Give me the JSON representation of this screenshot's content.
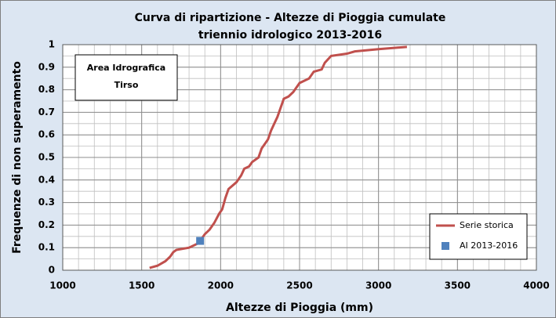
{
  "chart_data": {
    "type": "line",
    "title": [
      "Curva di ripartizione - Altezze di Pioggia cumulate",
      "triennio idrologico 2013-2016"
    ],
    "xlabel": "Altezze di Pioggia (mm)",
    "ylabel": "Frequenze di non superamento",
    "annotation": [
      "Area Idrografica",
      "Tirso"
    ],
    "xlim": [
      1000,
      4000
    ],
    "xticks": [
      1000,
      1500,
      2000,
      2500,
      3000,
      3500,
      4000
    ],
    "ylim": [
      0,
      1
    ],
    "yticks": [
      0,
      0.1,
      0.2,
      0.3,
      0.4,
      0.5,
      0.6,
      0.7,
      0.8,
      0.9,
      1
    ],
    "grid": true,
    "x_minor_step": 100,
    "y_minor_step": 0.05,
    "legend": "bottom-right",
    "series": [
      {
        "name": "Serie storica",
        "type": "line",
        "color": "#c0504d",
        "x": [
          1550,
          1600,
          1650,
          1680,
          1700,
          1720,
          1800,
          1860,
          1900,
          1930,
          1960,
          1990,
          2010,
          2030,
          2050,
          2100,
          2130,
          2150,
          2180,
          2200,
          2240,
          2260,
          2280,
          2300,
          2320,
          2340,
          2360,
          2380,
          2400,
          2430,
          2460,
          2480,
          2500,
          2560,
          2590,
          2640,
          2660,
          2700,
          2800,
          2850,
          3000,
          3180
        ],
        "values": [
          0.01,
          0.02,
          0.04,
          0.06,
          0.08,
          0.09,
          0.1,
          0.12,
          0.16,
          0.18,
          0.21,
          0.25,
          0.27,
          0.32,
          0.36,
          0.39,
          0.42,
          0.45,
          0.46,
          0.48,
          0.5,
          0.54,
          0.56,
          0.58,
          0.62,
          0.65,
          0.68,
          0.72,
          0.76,
          0.77,
          0.79,
          0.81,
          0.83,
          0.85,
          0.88,
          0.89,
          0.92,
          0.95,
          0.96,
          0.97,
          0.98,
          0.99
        ]
      },
      {
        "name": "AI 2013-2016",
        "type": "scatter",
        "color": "#4f81bd",
        "x": [
          1870
        ],
        "values": [
          0.13
        ]
      }
    ]
  }
}
